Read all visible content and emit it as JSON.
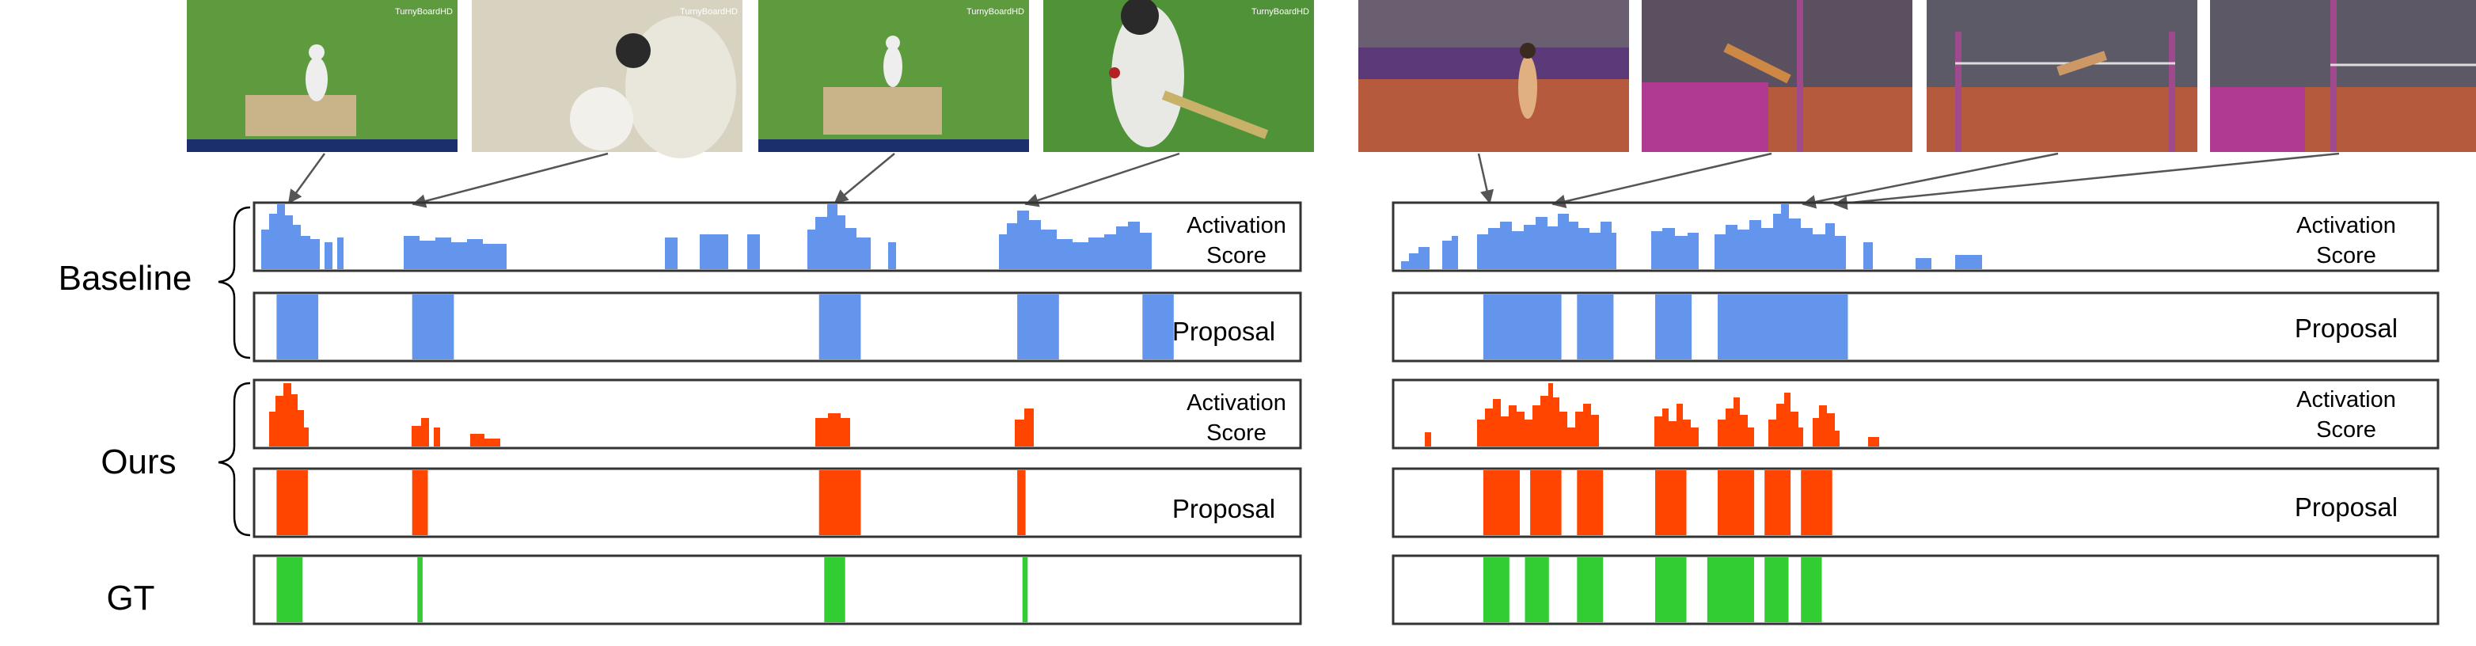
{
  "labels": {
    "baseline": "Baseline",
    "ours": "Ours",
    "gt": "GT",
    "activation_line1": "Activation",
    "activation_line2": "Score",
    "proposal": "Proposal"
  },
  "colors": {
    "baseline": "#6495ED",
    "ours": "#FF4500",
    "gt": "#32CD32",
    "frame": "#333333",
    "arrow": "#555555"
  },
  "thumbnails": {
    "left": [
      "cricket batsman playing shot",
      "bowler arm close-up",
      "cricket batsman at crease",
      "batsman close-up with bat"
    ],
    "right": [
      "high jumper approaching",
      "high jumper over bar",
      "high jumper clearing bar",
      "high jump mat and bar"
    ]
  },
  "thumbnail_overlays": {
    "left": [
      "TurnyBoardHD",
      "TurnyBoardHD",
      "TurnyBoardHD",
      "TurnyBoardHD"
    ],
    "right": [
      "",
      "",
      "",
      ""
    ]
  },
  "panels": {
    "left": {
      "baseline_proposals": [
        [
          0.02,
          0.06
        ],
        [
          0.15,
          0.19
        ],
        [
          0.54,
          0.58
        ],
        [
          0.73,
          0.77
        ],
        [
          0.85,
          0.88
        ]
      ],
      "ours_proposals": [
        [
          0.02,
          0.05
        ],
        [
          0.15,
          0.165
        ],
        [
          0.54,
          0.58
        ],
        [
          0.73,
          0.738
        ]
      ],
      "gt_segments": [
        [
          0.02,
          0.045
        ],
        [
          0.155,
          0.16
        ],
        [
          0.545,
          0.565
        ],
        [
          0.735,
          0.74
        ]
      ]
    },
    "right": {
      "baseline_proposals": [
        [
          0.085,
          0.16
        ],
        [
          0.175,
          0.21
        ],
        [
          0.25,
          0.285
        ],
        [
          0.31,
          0.435
        ]
      ],
      "ours_proposals": [
        [
          0.085,
          0.12
        ],
        [
          0.13,
          0.16
        ],
        [
          0.175,
          0.2
        ],
        [
          0.25,
          0.28
        ],
        [
          0.31,
          0.345
        ],
        [
          0.355,
          0.38
        ],
        [
          0.39,
          0.42
        ]
      ],
      "gt_segments": [
        [
          0.085,
          0.11
        ],
        [
          0.125,
          0.148
        ],
        [
          0.175,
          0.2
        ],
        [
          0.25,
          0.28
        ],
        [
          0.3,
          0.345
        ],
        [
          0.355,
          0.378
        ],
        [
          0.39,
          0.41
        ]
      ]
    }
  }
}
